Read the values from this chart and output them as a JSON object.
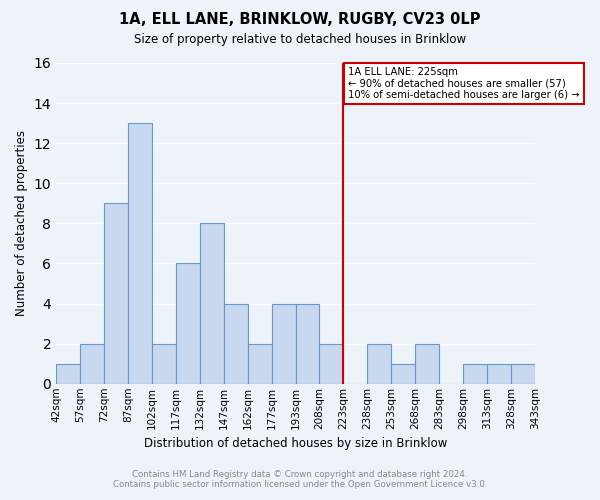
{
  "title": "1A, ELL LANE, BRINKLOW, RUGBY, CV23 0LP",
  "subtitle": "Size of property relative to detached houses in Brinklow",
  "xlabel": "Distribution of detached houses by size in Brinklow",
  "ylabel": "Number of detached properties",
  "bin_labels": [
    "42sqm",
    "57sqm",
    "72sqm",
    "87sqm",
    "102sqm",
    "117sqm",
    "132sqm",
    "147sqm",
    "162sqm",
    "177sqm",
    "193sqm",
    "208sqm",
    "223sqm",
    "238sqm",
    "253sqm",
    "268sqm",
    "283sqm",
    "298sqm",
    "313sqm",
    "328sqm",
    "343sqm"
  ],
  "bar_values": [
    1,
    2,
    9,
    13,
    2,
    6,
    8,
    4,
    2,
    4,
    4,
    2,
    0,
    2,
    1,
    2,
    0,
    1,
    1,
    1
  ],
  "bar_color": "#c8d8ee",
  "bar_edge_color": "#6699cc",
  "vline_index": 12,
  "vline_color": "#cc0000",
  "ylim": [
    0,
    16
  ],
  "yticks": [
    0,
    2,
    4,
    6,
    8,
    10,
    12,
    14,
    16
  ],
  "annotation_title": "1A ELL LANE: 225sqm",
  "annotation_line1": "← 90% of detached houses are smaller (57)",
  "annotation_line2": "10% of semi-detached houses are larger (6) →",
  "annotation_box_color": "#ffffff",
  "annotation_box_edge": "#cc0000",
  "footer_line1": "Contains HM Land Registry data © Crown copyright and database right 2024.",
  "footer_line2": "Contains public sector information licensed under the Open Government Licence v3.0.",
  "background_color": "#eef2f9",
  "grid_color": "#ffffff"
}
